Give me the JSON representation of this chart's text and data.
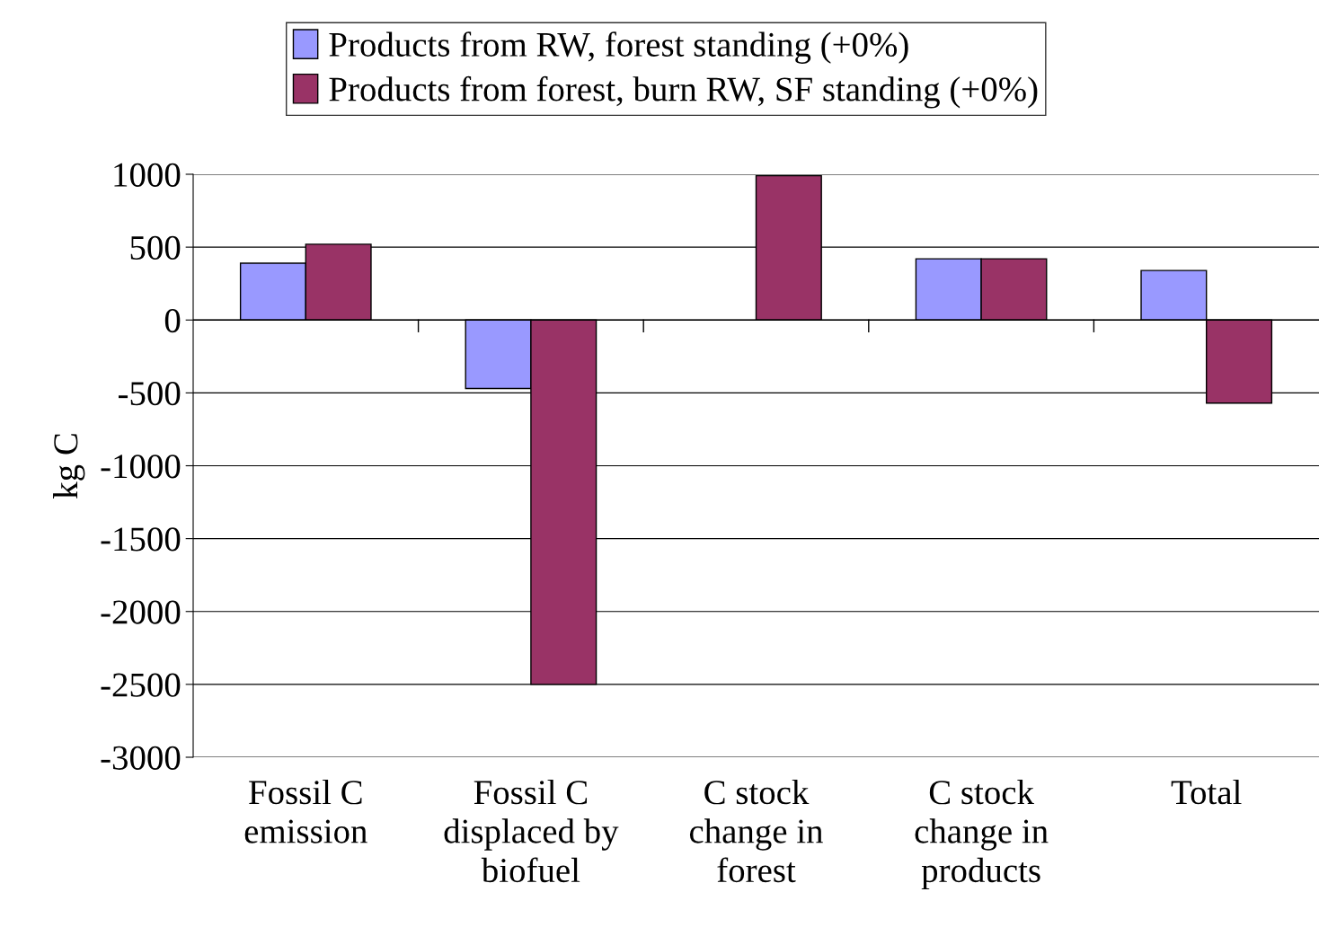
{
  "chart_data": {
    "type": "bar",
    "ylabel": "kg C",
    "categories": [
      "Fossil C\nemission",
      "Fossil C\ndisplaced by\nbiofuel",
      "C stock\nchange in\nforest",
      "C stock\nchange in\nproducts",
      "Total"
    ],
    "series": [
      {
        "name": "Products from RW, forest standing (+0%)",
        "color": "#9999ff",
        "values": [
          390,
          -470,
          null,
          420,
          340
        ]
      },
      {
        "name": "Products from forest, burn RW, SF standing (+0%)",
        "color": "#993366",
        "values": [
          520,
          -2500,
          990,
          420,
          -570
        ]
      }
    ],
    "ylim": [
      -3000,
      1000
    ],
    "yticks": [
      -3000,
      -2500,
      -2000,
      -1500,
      -1000,
      -500,
      0,
      500,
      1000
    ],
    "grid": "y",
    "legend": "top"
  }
}
